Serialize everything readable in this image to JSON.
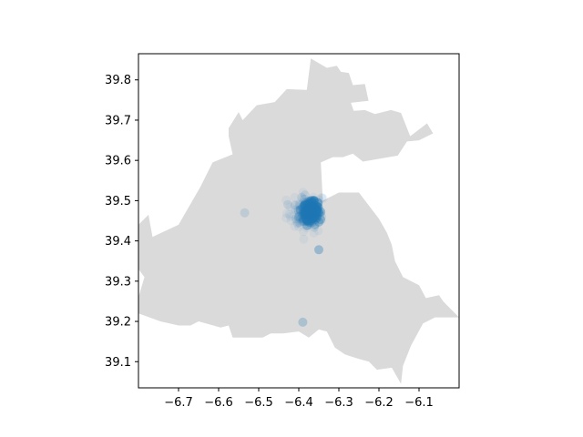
{
  "chart_data": {
    "type": "scatter",
    "title": "",
    "xlabel": "",
    "ylabel": "",
    "xlim": [
      -6.8,
      -6.0
    ],
    "ylim": [
      39.035,
      39.865
    ],
    "x_ticks": [
      -6.7,
      -6.6,
      -6.5,
      -6.4,
      -6.3,
      -6.2,
      -6.1
    ],
    "x_tick_labels": [
      "−6.7",
      "−6.6",
      "−6.5",
      "−6.4",
      "−6.3",
      "−6.2",
      "−6.1"
    ],
    "y_ticks": [
      39.1,
      39.2,
      39.3,
      39.4,
      39.5,
      39.6,
      39.7,
      39.8
    ],
    "y_tick_labels": [
      "39.1",
      "39.2",
      "39.3",
      "39.4",
      "39.5",
      "39.6",
      "39.7",
      "39.8"
    ],
    "grid": false,
    "region_color": "#dadada",
    "point_color": "#1f77b4",
    "region_outline": [
      [
        -6.43,
        39.777
      ],
      [
        -6.38,
        39.775
      ],
      [
        -6.37,
        39.853
      ],
      [
        -6.33,
        39.83
      ],
      [
        -6.305,
        39.835
      ],
      [
        -6.295,
        39.82
      ],
      [
        -6.275,
        39.817
      ],
      [
        -6.265,
        39.787
      ],
      [
        -6.235,
        39.79
      ],
      [
        -6.226,
        39.748
      ],
      [
        -6.27,
        39.743
      ],
      [
        -6.263,
        39.723
      ],
      [
        -6.235,
        39.725
      ],
      [
        -6.21,
        39.715
      ],
      [
        -6.17,
        39.725
      ],
      [
        -6.145,
        39.718
      ],
      [
        -6.122,
        39.66
      ],
      [
        -6.08,
        39.692
      ],
      [
        -6.065,
        39.667
      ],
      [
        -6.1,
        39.65
      ],
      [
        -6.13,
        39.647
      ],
      [
        -6.153,
        39.612
      ],
      [
        -6.24,
        39.597
      ],
      [
        -6.265,
        39.617
      ],
      [
        -6.29,
        39.608
      ],
      [
        -6.315,
        39.608
      ],
      [
        -6.345,
        39.595
      ],
      [
        -6.34,
        39.5
      ],
      [
        -6.3,
        39.52
      ],
      [
        -6.25,
        39.52
      ],
      [
        -6.2,
        39.455
      ],
      [
        -6.18,
        39.42
      ],
      [
        -6.168,
        39.39
      ],
      [
        -6.16,
        39.35
      ],
      [
        -6.14,
        39.31
      ],
      [
        -6.1,
        39.29
      ],
      [
        -6.083,
        39.258
      ],
      [
        -6.05,
        39.265
      ],
      [
        -6.04,
        39.25
      ],
      [
        -6.0,
        39.21
      ],
      [
        -6.06,
        39.21
      ],
      [
        -6.09,
        39.195
      ],
      [
        -6.12,
        39.14
      ],
      [
        -6.14,
        39.09
      ],
      [
        -6.145,
        39.045
      ],
      [
        -6.168,
        39.085
      ],
      [
        -6.205,
        39.08
      ],
      [
        -6.225,
        39.1
      ],
      [
        -6.25,
        39.107
      ],
      [
        -6.285,
        39.118
      ],
      [
        -6.31,
        39.135
      ],
      [
        -6.33,
        39.175
      ],
      [
        -6.35,
        39.18
      ],
      [
        -6.375,
        39.16
      ],
      [
        -6.4,
        39.175
      ],
      [
        -6.44,
        39.17
      ],
      [
        -6.47,
        39.17
      ],
      [
        -6.49,
        39.16
      ],
      [
        -6.565,
        39.16
      ],
      [
        -6.575,
        39.19
      ],
      [
        -6.595,
        39.185
      ],
      [
        -6.65,
        39.2
      ],
      [
        -6.67,
        39.19
      ],
      [
        -6.7,
        39.19
      ],
      [
        -6.745,
        39.2
      ],
      [
        -6.8,
        39.22
      ],
      [
        -6.8,
        39.26
      ],
      [
        -6.785,
        39.31
      ],
      [
        -6.8,
        39.33
      ],
      [
        -6.8,
        39.44
      ],
      [
        -6.775,
        39.465
      ],
      [
        -6.765,
        39.41
      ],
      [
        -6.7,
        39.44
      ],
      [
        -6.645,
        39.535
      ],
      [
        -6.615,
        39.595
      ],
      [
        -6.565,
        39.615
      ],
      [
        -6.575,
        39.66
      ],
      [
        -6.575,
        39.68
      ],
      [
        -6.55,
        39.72
      ],
      [
        -6.54,
        39.7
      ],
      [
        -6.505,
        39.737
      ],
      [
        -6.46,
        39.745
      ],
      [
        -6.43,
        39.777
      ]
    ],
    "clusters": [
      {
        "x": -6.38,
        "y": 39.47,
        "spread_x": 0.05,
        "spread_y": 0.05,
        "count": 60,
        "alpha": 0.06
      },
      {
        "x": -6.375,
        "y": 39.47,
        "spread_x": 0.03,
        "spread_y": 0.035,
        "count": 120,
        "alpha": 0.12
      },
      {
        "x": -6.37,
        "y": 39.475,
        "spread_x": 0.018,
        "spread_y": 0.022,
        "count": 160,
        "alpha": 0.35
      }
    ],
    "points": [
      {
        "x": -6.35,
        "y": 39.378,
        "alpha": 0.35
      },
      {
        "x": -6.39,
        "y": 39.198,
        "alpha": 0.25
      },
      {
        "x": -6.535,
        "y": 39.47,
        "alpha": 0.15
      },
      {
        "x": -6.36,
        "y": 39.44,
        "alpha": 0.3
      },
      {
        "x": -6.4,
        "y": 39.46,
        "alpha": 0.3
      }
    ]
  }
}
